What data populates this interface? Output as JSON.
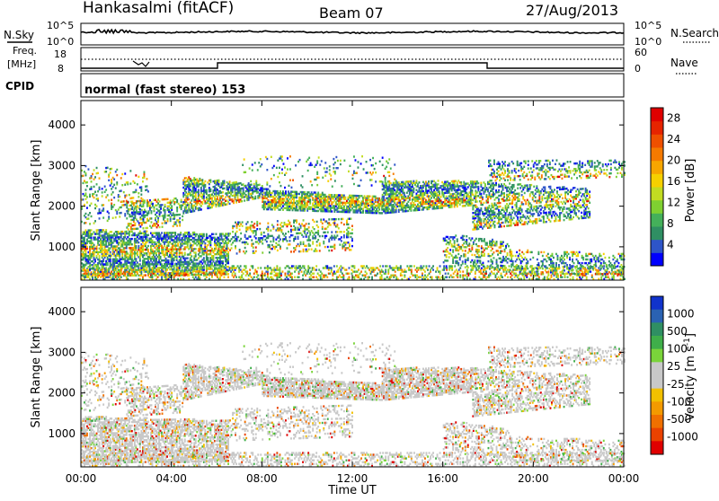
{
  "header": {
    "title": "Hankasalmi (fitACF)",
    "beam": "Beam 07",
    "date": "27/Aug/2013"
  },
  "status_panel": {
    "nsky_label": "N.Sky",
    "freq_label_line1": "Freq.",
    "freq_label_line2": "[MHz]",
    "cpid_label": "CPID",
    "nsearch_label": "N.Search",
    "nave_label": "Nave",
    "nsky_ticks": [
      "10^5",
      "10^0"
    ],
    "nsearch_ticks": [
      "10^5",
      "10^0"
    ],
    "freq_ticks": [
      "18",
      "8"
    ],
    "nave_ticks": [
      "60",
      "0"
    ],
    "cpid_text": "normal (fast stereo) 153"
  },
  "chart_data": [
    {
      "type": "heatmap",
      "name": "power",
      "xlabel": "",
      "ylabel": "Slant Range [km]",
      "yticks": [
        "1000",
        "2000",
        "3000",
        "4000"
      ],
      "xticks": [
        "00:00",
        "04:00",
        "08:00",
        "12:00",
        "16:00",
        "20:00",
        "00:00"
      ],
      "xlim_hours": [
        0,
        24
      ],
      "ylim_km": [
        180,
        4600
      ],
      "colorbar": {
        "label": "Power [dB]",
        "ticks": [
          "4",
          "8",
          "12",
          "16",
          "20",
          "24",
          "28"
        ],
        "range": [
          0,
          30
        ],
        "colors": [
          "#0000ff",
          "#2e55c8",
          "#2f8f63",
          "#44b05a",
          "#7fd031",
          "#c2dc22",
          "#f6d000",
          "#f7a600",
          "#f57a00",
          "#ef5000",
          "#e62400",
          "#e00000"
        ]
      }
    },
    {
      "type": "heatmap",
      "name": "velocity",
      "xlabel": "Time UT",
      "ylabel": "Slant Range [km]",
      "yticks": [
        "1000",
        "2000",
        "3000",
        "4000"
      ],
      "xticks": [
        "00:00",
        "04:00",
        "08:00",
        "12:00",
        "16:00",
        "20:00",
        "00:00"
      ],
      "xlim_hours": [
        0,
        24
      ],
      "ylim_km": [
        180,
        4600
      ],
      "colorbar": {
        "label": "Velocity [m s",
        "label_exp": "-1",
        "label_close": "]",
        "ticks": [
          "1000",
          "500",
          "100",
          "25",
          "-25",
          "-100",
          "-500",
          "-1000"
        ],
        "colors": [
          "#1133cc",
          "#2a62b2",
          "#2f8f63",
          "#3fae4a",
          "#7ad43a",
          "#c8c8c8",
          "#c8c8c8",
          "#f2c000",
          "#f39a00",
          "#f07000",
          "#ea4200",
          "#e00000"
        ]
      }
    }
  ]
}
